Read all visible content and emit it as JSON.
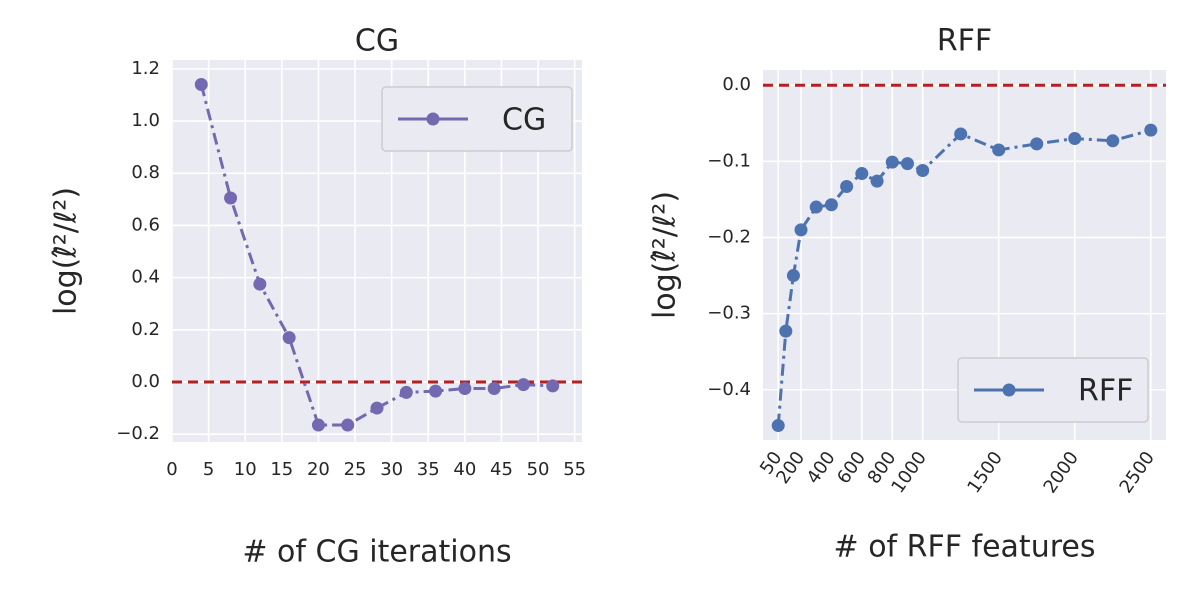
{
  "chart_data": [
    {
      "type": "line",
      "title": "CG",
      "xlabel": "# of CG iterations",
      "ylabel": "log(ℓ̂²/ℓ²)",
      "x": [
        4,
        8,
        12,
        16,
        20,
        24,
        28,
        32,
        36,
        40,
        44,
        48,
        52
      ],
      "series": [
        {
          "name": "CG",
          "color": "#7468b0",
          "values": [
            1.14,
            0.705,
            0.375,
            0.17,
            -0.165,
            -0.165,
            -0.1,
            -0.04,
            -0.035,
            -0.025,
            -0.025,
            -0.01,
            -0.015
          ]
        }
      ],
      "xlim": [
        0,
        56
      ],
      "xticks": [
        0,
        5,
        10,
        15,
        20,
        25,
        30,
        35,
        40,
        45,
        50,
        55
      ],
      "ylim": [
        -0.23,
        1.234
      ],
      "yticks": [
        {
          "value": -0.2,
          "label": "−0.2"
        },
        {
          "value": 0,
          "label": "0.0"
        },
        0.2,
        0.4,
        0.6,
        0.8,
        {
          "value": 1,
          "label": "1.0"
        },
        1.2
      ],
      "hline": 0,
      "hline_color": "#b22222",
      "grid": true,
      "legend": "upper right"
    },
    {
      "type": "line",
      "title": "RFF",
      "xlabel": "# of RFF features",
      "ylabel": "log(ℓ̂²/ℓ²)",
      "x": [
        50,
        100,
        150,
        200,
        300,
        400,
        500,
        600,
        700,
        800,
        900,
        1000,
        1250,
        1500,
        1750,
        2000,
        2250,
        2500
      ],
      "series": [
        {
          "name": "RFF",
          "color": "#4c72b0",
          "values": [
            -0.447,
            -0.323,
            -0.25,
            -0.19,
            -0.16,
            -0.157,
            -0.133,
            -0.116,
            -0.126,
            -0.101,
            -0.103,
            -0.112,
            -0.064,
            -0.085,
            -0.077,
            -0.07,
            -0.073,
            -0.059
          ]
        }
      ],
      "xlim": [
        -50,
        2600
      ],
      "xticks": [
        50,
        200,
        400,
        600,
        800,
        1000,
        1500,
        2000,
        2500
      ],
      "ylim": [
        -0.466,
        0.02
      ],
      "yticks": [
        {
          "value": -0.4,
          "label": "−0.4"
        },
        {
          "value": -0.3,
          "label": "−0.3"
        },
        {
          "value": -0.2,
          "label": "−0.2"
        },
        {
          "value": -0.1,
          "label": "−0.1"
        },
        {
          "value": 0,
          "label": "0.0"
        }
      ],
      "hline": 0,
      "hline_color": "#b22222",
      "grid": true,
      "legend": "lower right"
    }
  ]
}
